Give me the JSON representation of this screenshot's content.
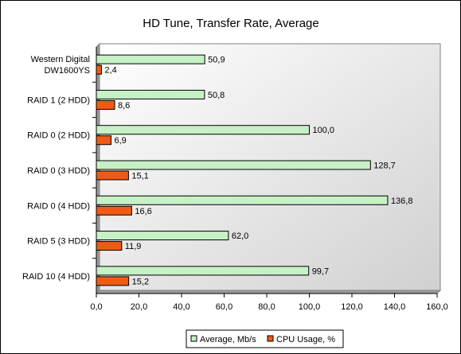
{
  "chart_data": {
    "type": "bar",
    "orientation": "horizontal",
    "title": "HD Tune, Transfer Rate, Average",
    "categories": [
      [
        "Western Digital",
        "DW1600YS"
      ],
      [
        "RAID 1 (2 HDD)"
      ],
      [
        "RAID 0 (2 HDD)"
      ],
      [
        "RAID 0 (3 HDD)"
      ],
      [
        "RAID 0 (4 HDD)"
      ],
      [
        "RAID 5 (3 HDD)"
      ],
      [
        "RAID 10 (4 HDD)"
      ]
    ],
    "series": [
      {
        "name": "Average, Mb/s",
        "color": "#c6f0c6",
        "values": [
          50.9,
          50.8,
          100.0,
          128.7,
          136.8,
          62.0,
          99.7
        ],
        "labels": [
          "50,9",
          "50,8",
          "100,0",
          "128,7",
          "136,8",
          "62,0",
          "99,7"
        ]
      },
      {
        "name": "CPU Usage, %",
        "color": "#f05a14",
        "values": [
          2.4,
          8.6,
          6.9,
          15.1,
          16.6,
          11.9,
          15.2
        ],
        "labels": [
          "2,4",
          "8,6",
          "6,9",
          "15,1",
          "16,6",
          "11,9",
          "15,2"
        ]
      }
    ],
    "xlim": [
      0,
      160
    ],
    "xticks": [
      0,
      20,
      40,
      60,
      80,
      100,
      120,
      140,
      160
    ],
    "xtick_labels": [
      "0,0",
      "20,0",
      "40,0",
      "60,0",
      "80,0",
      "100,0",
      "120,0",
      "140,0",
      "160,0"
    ],
    "legend_position": "bottom",
    "gridlines": false
  }
}
